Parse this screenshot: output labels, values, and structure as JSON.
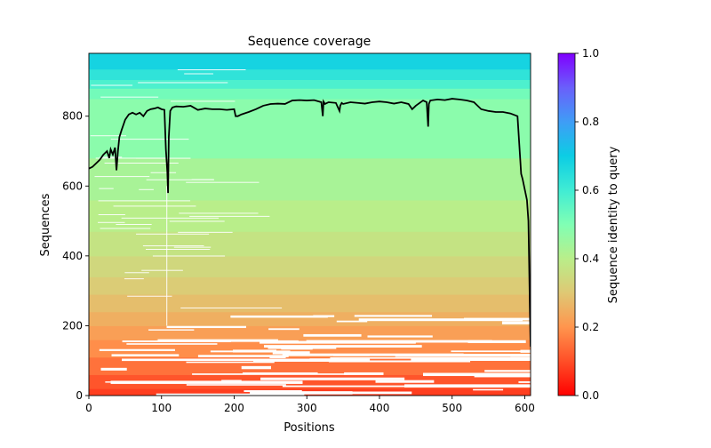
{
  "chart_data": {
    "type": "heatmap",
    "title": "Sequence coverage",
    "xlabel": "Positions",
    "ylabel": "Sequences",
    "xlim": [
      0,
      608
    ],
    "ylim": [
      0,
      980
    ],
    "xticks": [
      0,
      100,
      200,
      300,
      400,
      500,
      600
    ],
    "yticks": [
      0,
      200,
      400,
      600,
      800
    ],
    "colorbar": {
      "label": "Sequence identity to query",
      "range": [
        0.0,
        1.0
      ],
      "ticks": [
        "0.0",
        "0.2",
        "0.4",
        "0.6",
        "0.8",
        "1.0"
      ],
      "colormap": "rainbow_r"
    },
    "identity_bands": [
      {
        "from": 0,
        "to": 20,
        "identity": 0.08
      },
      {
        "from": 20,
        "to": 60,
        "identity": 0.11
      },
      {
        "from": 60,
        "to": 110,
        "identity": 0.15
      },
      {
        "from": 110,
        "to": 160,
        "identity": 0.19
      },
      {
        "from": 160,
        "to": 200,
        "identity": 0.22
      },
      {
        "from": 200,
        "to": 240,
        "identity": 0.25
      },
      {
        "from": 240,
        "to": 290,
        "identity": 0.28
      },
      {
        "from": 290,
        "to": 340,
        "identity": 0.31
      },
      {
        "from": 340,
        "to": 400,
        "identity": 0.34
      },
      {
        "from": 400,
        "to": 470,
        "identity": 0.37
      },
      {
        "from": 470,
        "to": 560,
        "identity": 0.4
      },
      {
        "from": 560,
        "to": 680,
        "identity": 0.43
      },
      {
        "from": 680,
        "to": 850,
        "identity": 0.48
      },
      {
        "from": 850,
        "to": 880,
        "identity": 0.52
      },
      {
        "from": 880,
        "to": 905,
        "identity": 0.58
      },
      {
        "from": 905,
        "to": 935,
        "identity": 0.63
      },
      {
        "from": 935,
        "to": 980,
        "identity": 0.68
      }
    ],
    "coverage_series": {
      "name": "coverage",
      "x": [
        0,
        5,
        10,
        15,
        20,
        25,
        28,
        30,
        33,
        36,
        38,
        40,
        42,
        45,
        50,
        55,
        60,
        65,
        70,
        75,
        80,
        85,
        90,
        95,
        100,
        104,
        106,
        108,
        109,
        110,
        112,
        115,
        120,
        130,
        140,
        150,
        160,
        170,
        180,
        190,
        200,
        202,
        205,
        210,
        220,
        230,
        240,
        250,
        260,
        270,
        280,
        290,
        300,
        310,
        320,
        322,
        323,
        325,
        330,
        340,
        345,
        346,
        348,
        350,
        360,
        370,
        380,
        390,
        400,
        410,
        420,
        430,
        440,
        445,
        450,
        460,
        465,
        467,
        468,
        470,
        480,
        490,
        500,
        510,
        520,
        530,
        540,
        550,
        560,
        570,
        580,
        590,
        595,
        597,
        600,
        603,
        605,
        606,
        607,
        608
      ],
      "y": [
        650,
        655,
        665,
        675,
        690,
        700,
        680,
        705,
        690,
        710,
        645,
        700,
        740,
        760,
        790,
        805,
        810,
        805,
        810,
        800,
        815,
        820,
        822,
        825,
        820,
        818,
        705,
        640,
        580,
        740,
        815,
        825,
        828,
        827,
        830,
        818,
        822,
        820,
        820,
        818,
        820,
        800,
        800,
        805,
        812,
        820,
        830,
        835,
        836,
        835,
        845,
        846,
        845,
        846,
        840,
        800,
        842,
        835,
        840,
        838,
        815,
        830,
        838,
        835,
        840,
        838,
        836,
        840,
        842,
        840,
        836,
        840,
        835,
        820,
        830,
        845,
        840,
        770,
        835,
        845,
        848,
        846,
        850,
        848,
        845,
        840,
        820,
        815,
        812,
        812,
        808,
        800,
        635,
        620,
        590,
        560,
        500,
        380,
        250,
        140
      ]
    }
  }
}
